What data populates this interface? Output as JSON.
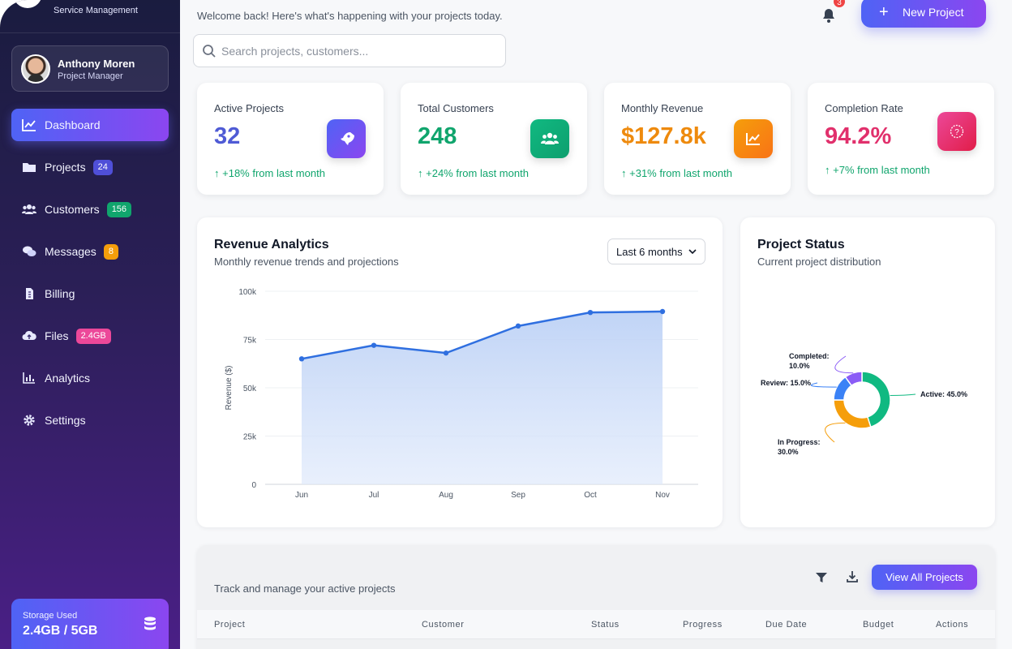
{
  "sidebar": {
    "brand_subtitle": "Service Management",
    "user": {
      "name": "Anthony Moren",
      "role": "Project Manager"
    },
    "items": [
      {
        "label": "Dashboard",
        "icon": "chart-line-icon",
        "active": true
      },
      {
        "label": "Projects",
        "icon": "folder-icon",
        "badge": "24",
        "badge_color": "#4f4fd8"
      },
      {
        "label": "Customers",
        "icon": "users-icon",
        "badge": "156",
        "badge_color": "#10a56d"
      },
      {
        "label": "Messages",
        "icon": "chat-icon",
        "badge": "8",
        "badge_color": "#f59e0b"
      },
      {
        "label": "Billing",
        "icon": "invoice-icon"
      },
      {
        "label": "Files",
        "icon": "cloud-upload-icon",
        "badge": "2.4GB",
        "badge_color": "#ec4899"
      },
      {
        "label": "Analytics",
        "icon": "bar-chart-icon"
      },
      {
        "label": "Settings",
        "icon": "gear-icon"
      }
    ],
    "storage": {
      "label": "Storage Used",
      "value": "2.4GB / 5GB",
      "used_fraction": 0.48
    }
  },
  "header": {
    "welcome": "Welcome back! Here's what's happening with your projects today.",
    "notification_count": "3",
    "new_project_label": "New Project",
    "search_placeholder": "Search projects, customers..."
  },
  "stats": [
    {
      "label": "Active Projects",
      "value": "32",
      "change": "+18% from last month",
      "color": "#4f5bd5",
      "icon": "rocket-icon",
      "icon_bg": "linear-gradient(135deg,#4f63f5,#8b46f0)"
    },
    {
      "label": "Total Customers",
      "value": "248",
      "change": "+24% from last month",
      "color": "#10a56d",
      "icon": "users-icon",
      "icon_bg": "linear-gradient(135deg,#10b981,#0e9f6e)"
    },
    {
      "label": "Monthly Revenue",
      "value": "$127.8k",
      "change": "+31% from last month",
      "color": "#ee8a0d",
      "icon": "chart-line-icon",
      "icon_bg": "linear-gradient(135deg,#f59e0b,#f97316)"
    },
    {
      "label": "Completion Rate",
      "value": "94.2%",
      "change": "+7% from last month",
      "color": "#e1306c",
      "icon": "question-circle-icon",
      "icon_bg": "linear-gradient(135deg,#ec4899,#e11d48)"
    }
  ],
  "revenue_panel": {
    "title": "Revenue Analytics",
    "subtitle": "Monthly revenue trends and projections",
    "range": "Last 6 months"
  },
  "status_panel": {
    "title": "Project Status",
    "subtitle": "Current project distribution"
  },
  "chart_data": [
    {
      "type": "area",
      "categories": [
        "Jun",
        "Jul",
        "Aug",
        "Sep",
        "Oct",
        "Nov"
      ],
      "values": [
        65000,
        72000,
        68000,
        82000,
        89000,
        89500
      ],
      "ylabel": "Revenue ($)",
      "ylim": [
        0,
        100000
      ],
      "yticks": [
        0,
        25000,
        50000,
        75000,
        100000
      ],
      "ytick_labels": [
        "0",
        "25k",
        "50k",
        "75k",
        "100k"
      ],
      "grid": true,
      "color": "#2f6fe0"
    },
    {
      "type": "pie",
      "donut": true,
      "slices": [
        {
          "label": "Active: 45.0%",
          "value": 45.0,
          "color": "#10b981"
        },
        {
          "label": "In Progress: 30.0%",
          "value": 30.0,
          "color": "#f59e0b"
        },
        {
          "label": "Review: 15.0%",
          "value": 15.0,
          "color": "#3b82f6"
        },
        {
          "label": "Completed: 10.0%",
          "value": 10.0,
          "color": "#8b5cf6"
        }
      ]
    }
  ],
  "table": {
    "subtitle": "Track and manage your active projects",
    "view_all_label": "View All Projects",
    "columns": [
      "Project",
      "Customer",
      "Status",
      "Progress",
      "Due Date",
      "Budget",
      "Actions"
    ]
  }
}
